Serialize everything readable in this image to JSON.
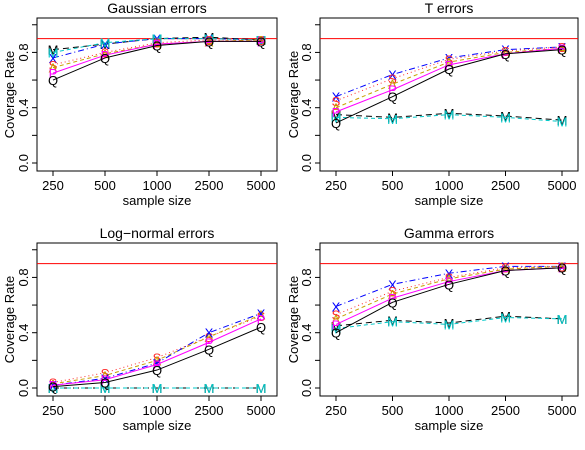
{
  "figure": {
    "panels_title": [
      "Gaussian errors",
      "T errors",
      "Log−normal errors",
      "Gamma errors"
    ]
  },
  "chart_data": [
    {
      "type": "line",
      "title": "Gaussian errors",
      "xlabel": "sample size",
      "ylabel": "Coverage Rate",
      "categories": [
        "250",
        "500",
        "1000",
        "2500",
        "5000"
      ],
      "yticks": [
        "0.0",
        "0.4",
        "0.8"
      ],
      "ylim": [
        0,
        1.02
      ],
      "reference_line": 0.9,
      "series": [
        {
          "symbol": "M",
          "color": "#000000",
          "dash": "6,4",
          "values": [
            0.82,
            0.86,
            0.9,
            0.91,
            0.89
          ]
        },
        {
          "symbol": "X",
          "color": "#0000ff",
          "dash": "6,3,1,3",
          "values": [
            0.76,
            0.86,
            0.9,
            0.9,
            0.89
          ]
        },
        {
          "symbol": "M",
          "color": "#00c8c8",
          "dash": "4,3",
          "values": [
            0.8,
            0.87,
            0.9,
            0.9,
            0.89
          ]
        },
        {
          "symbol": "S",
          "color": "#ff2a2a",
          "dash": "1,3",
          "values": [
            0.71,
            0.8,
            0.87,
            0.89,
            0.89
          ]
        },
        {
          "symbol": "A",
          "color": "#c8a000",
          "dash": "4,3",
          "values": [
            0.69,
            0.79,
            0.86,
            0.88,
            0.89
          ]
        },
        {
          "symbol": "P",
          "color": "#ff00ff",
          "dash": "",
          "values": [
            0.65,
            0.78,
            0.86,
            0.88,
            0.88
          ]
        },
        {
          "symbol": "Q",
          "color": "#000000",
          "dash": "",
          "values": [
            0.6,
            0.76,
            0.85,
            0.88,
            0.88
          ]
        }
      ]
    },
    {
      "type": "line",
      "title": "T errors",
      "xlabel": "sample size",
      "ylabel": "Coverage Rate",
      "categories": [
        "250",
        "500",
        "1000",
        "2500",
        "5000"
      ],
      "yticks": [
        "0.0",
        "0.4",
        "0.8"
      ],
      "ylim": [
        0,
        1.02
      ],
      "reference_line": 0.9,
      "series": [
        {
          "symbol": "M",
          "color": "#000000",
          "dash": "6,4",
          "values": [
            0.35,
            0.33,
            0.36,
            0.34,
            0.31
          ]
        },
        {
          "symbol": "M",
          "color": "#00c8c8",
          "dash": "4,3",
          "values": [
            0.33,
            0.32,
            0.35,
            0.33,
            0.3
          ]
        },
        {
          "symbol": "X",
          "color": "#0000ff",
          "dash": "6,3,1,3",
          "values": [
            0.48,
            0.64,
            0.76,
            0.82,
            0.84
          ]
        },
        {
          "symbol": "S",
          "color": "#ff2a2a",
          "dash": "1,3",
          "values": [
            0.45,
            0.61,
            0.75,
            0.81,
            0.84
          ]
        },
        {
          "symbol": "A",
          "color": "#c8a000",
          "dash": "4,3",
          "values": [
            0.4,
            0.57,
            0.73,
            0.8,
            0.83
          ]
        },
        {
          "symbol": "P",
          "color": "#ff00ff",
          "dash": "",
          "values": [
            0.37,
            0.53,
            0.71,
            0.79,
            0.83
          ]
        },
        {
          "symbol": "Q",
          "color": "#000000",
          "dash": "",
          "values": [
            0.29,
            0.48,
            0.68,
            0.79,
            0.82
          ]
        }
      ]
    },
    {
      "type": "line",
      "title": "Log−normal errors",
      "xlabel": "sample size",
      "ylabel": "Coverage Rate",
      "categories": [
        "250",
        "500",
        "1000",
        "2500",
        "5000"
      ],
      "yticks": [
        "0.0",
        "0.4",
        "0.8"
      ],
      "ylim": [
        0,
        1.02
      ],
      "reference_line": 0.9,
      "series": [
        {
          "symbol": "M",
          "color": "#000000",
          "dash": "6,4",
          "values": [
            0.0,
            0.0,
            0.0,
            0.0,
            0.0
          ]
        },
        {
          "symbol": "M",
          "color": "#00c8c8",
          "dash": "4,3",
          "values": [
            0.0,
            0.0,
            0.0,
            0.0,
            0.0
          ]
        },
        {
          "symbol": "S",
          "color": "#ff2a2a",
          "dash": "1,3",
          "values": [
            0.04,
            0.11,
            0.22,
            0.37,
            0.52
          ]
        },
        {
          "symbol": "A",
          "color": "#c8a000",
          "dash": "4,3",
          "values": [
            0.03,
            0.09,
            0.2,
            0.37,
            0.53
          ]
        },
        {
          "symbol": "X",
          "color": "#0000ff",
          "dash": "6,3,1,3",
          "values": [
            0.02,
            0.07,
            0.18,
            0.4,
            0.54
          ]
        },
        {
          "symbol": "P",
          "color": "#ff00ff",
          "dash": "",
          "values": [
            0.02,
            0.06,
            0.17,
            0.33,
            0.5
          ]
        },
        {
          "symbol": "Q",
          "color": "#000000",
          "dash": "",
          "values": [
            0.01,
            0.04,
            0.13,
            0.28,
            0.44
          ]
        }
      ]
    },
    {
      "type": "line",
      "title": "Gamma errors",
      "xlabel": "sample size",
      "ylabel": "Coverage Rate",
      "categories": [
        "250",
        "500",
        "1000",
        "2500",
        "5000"
      ],
      "yticks": [
        "0.0",
        "0.4",
        "0.8"
      ],
      "ylim": [
        0,
        1.02
      ],
      "reference_line": 0.9,
      "series": [
        {
          "symbol": "M",
          "color": "#000000",
          "dash": "6,4",
          "values": [
            0.45,
            0.49,
            0.47,
            0.52,
            0.5
          ]
        },
        {
          "symbol": "M",
          "color": "#00c8c8",
          "dash": "4,3",
          "values": [
            0.43,
            0.48,
            0.46,
            0.51,
            0.5
          ]
        },
        {
          "symbol": "X",
          "color": "#0000ff",
          "dash": "6,3,1,3",
          "values": [
            0.59,
            0.75,
            0.83,
            0.88,
            0.88
          ]
        },
        {
          "symbol": "S",
          "color": "#ff2a2a",
          "dash": "1,3",
          "values": [
            0.53,
            0.7,
            0.8,
            0.87,
            0.88
          ]
        },
        {
          "symbol": "A",
          "color": "#c8a000",
          "dash": "4,3",
          "values": [
            0.5,
            0.68,
            0.79,
            0.86,
            0.88
          ]
        },
        {
          "symbol": "P",
          "color": "#ff00ff",
          "dash": "",
          "values": [
            0.46,
            0.65,
            0.77,
            0.85,
            0.87
          ]
        },
        {
          "symbol": "Q",
          "color": "#000000",
          "dash": "",
          "values": [
            0.4,
            0.62,
            0.75,
            0.85,
            0.87
          ]
        }
      ]
    }
  ]
}
